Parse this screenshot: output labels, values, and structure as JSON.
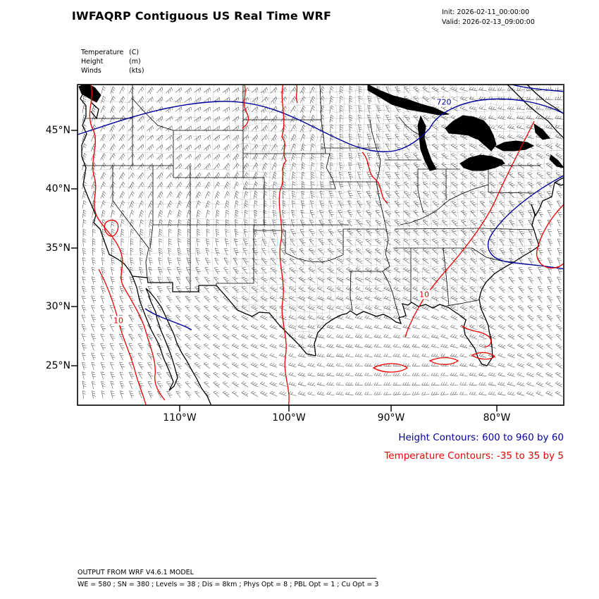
{
  "header": {
    "title": "IWFAQRP Contiguous US Real Time WRF",
    "init_line": "Init: 2026-02-11_00:00:00",
    "valid_line": "Valid: 2026-02-13_09:00:00"
  },
  "legend": {
    "variables": [
      {
        "name": "Temperature",
        "unit": "(C)"
      },
      {
        "name": "Height",
        "unit": "(m)"
      },
      {
        "name": "Winds",
        "unit": "(kts)"
      }
    ]
  },
  "chart_data": {
    "type": "contour-map",
    "title": "IWFAQRP Contiguous US Real Time WRF",
    "region": "Contiguous US",
    "x_axis": {
      "ticks": [
        "110°W",
        "100°W",
        "90°W",
        "80°W"
      ]
    },
    "y_axis": {
      "ticks": [
        "45°N",
        "40°N",
        "35°N",
        "30°N",
        "25°N"
      ]
    },
    "series": [
      {
        "name": "Height",
        "unit": "m",
        "style": "contour",
        "color": "#00009c",
        "min": 600,
        "max": 960,
        "interval": 60,
        "labels_visible": [
          "720"
        ]
      },
      {
        "name": "Temperature",
        "unit": "C",
        "style": "contour",
        "color": "#ee0000",
        "min": -35,
        "max": 35,
        "interval": 5,
        "labels_visible": [
          "10",
          "10"
        ]
      },
      {
        "name": "Winds",
        "unit": "kts",
        "style": "wind-barbs",
        "color": "#222222"
      }
    ],
    "captions": {
      "height": "Height Contours: 600 to 960 by 60",
      "temperature": "Temperature Contours: -35 to 35 by 5"
    },
    "basemap": "US state and county boundaries",
    "legend_position": "bottom-right"
  },
  "footer": {
    "line1": "OUTPUT FROM WRF V4.6.1 MODEL",
    "line2": "WE = 580 ; SN = 380 ; Levels = 38 ; Dis = 8km ; Phys Opt = 8 ; PBL Opt = 1 ; Cu Opt = 3"
  },
  "colors": {
    "height_contour": "#00009c",
    "temperature_contour": "#ee0000",
    "map_lines": "#000000",
    "background": "#ffffff"
  }
}
